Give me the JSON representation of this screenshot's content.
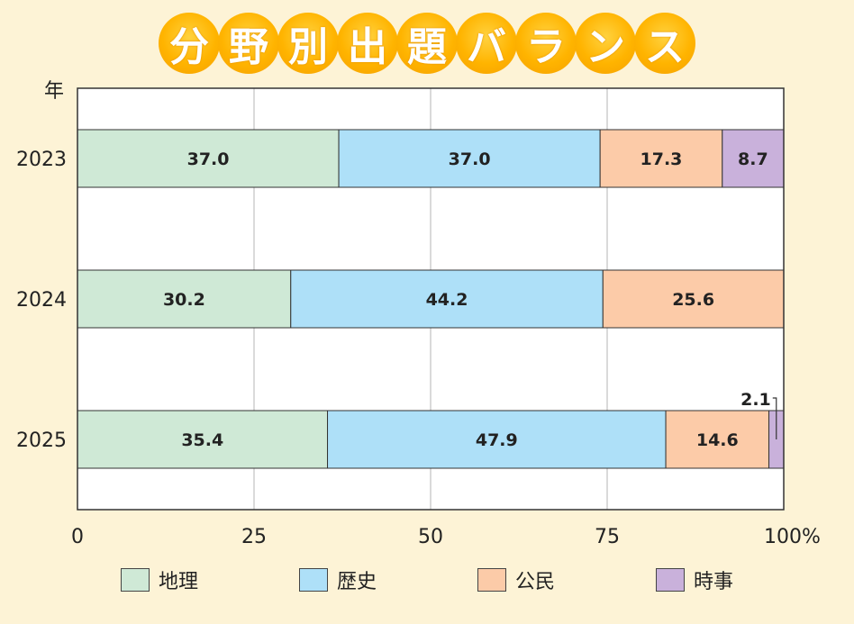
{
  "title_chars": [
    "分",
    "野",
    "別",
    "出",
    "題",
    "バ",
    "ラ",
    "ン",
    "ス"
  ],
  "chart_data": {
    "type": "bar",
    "orientation": "horizontal",
    "stacked": true,
    "title": "分野別出題バランス",
    "ylabel": "年",
    "xlabel": "",
    "xlim": [
      0,
      100
    ],
    "x_ticks": [
      "0",
      "25",
      "50",
      "75",
      "100%"
    ],
    "categories": [
      "2023",
      "2024",
      "2025"
    ],
    "series": [
      {
        "name": "地理",
        "color": "#cfe9d6",
        "values": [
          37.0,
          30.2,
          35.4
        ],
        "labels": [
          "37.0",
          "30.2",
          "35.4"
        ]
      },
      {
        "name": "歴史",
        "color": "#aee0f8",
        "values": [
          37.0,
          44.2,
          47.9
        ],
        "labels": [
          "37.0",
          "44.2",
          "47.9"
        ]
      },
      {
        "name": "公民",
        "color": "#fccba8",
        "values": [
          17.3,
          25.6,
          14.6
        ],
        "labels": [
          "17.3",
          "25.6",
          "14.6"
        ]
      },
      {
        "name": "時事",
        "color": "#c9b1db",
        "values": [
          8.7,
          0,
          2.1
        ],
        "labels": [
          "8.7",
          "",
          "2.1"
        ]
      }
    ],
    "grid": true,
    "legend_position": "bottom"
  }
}
